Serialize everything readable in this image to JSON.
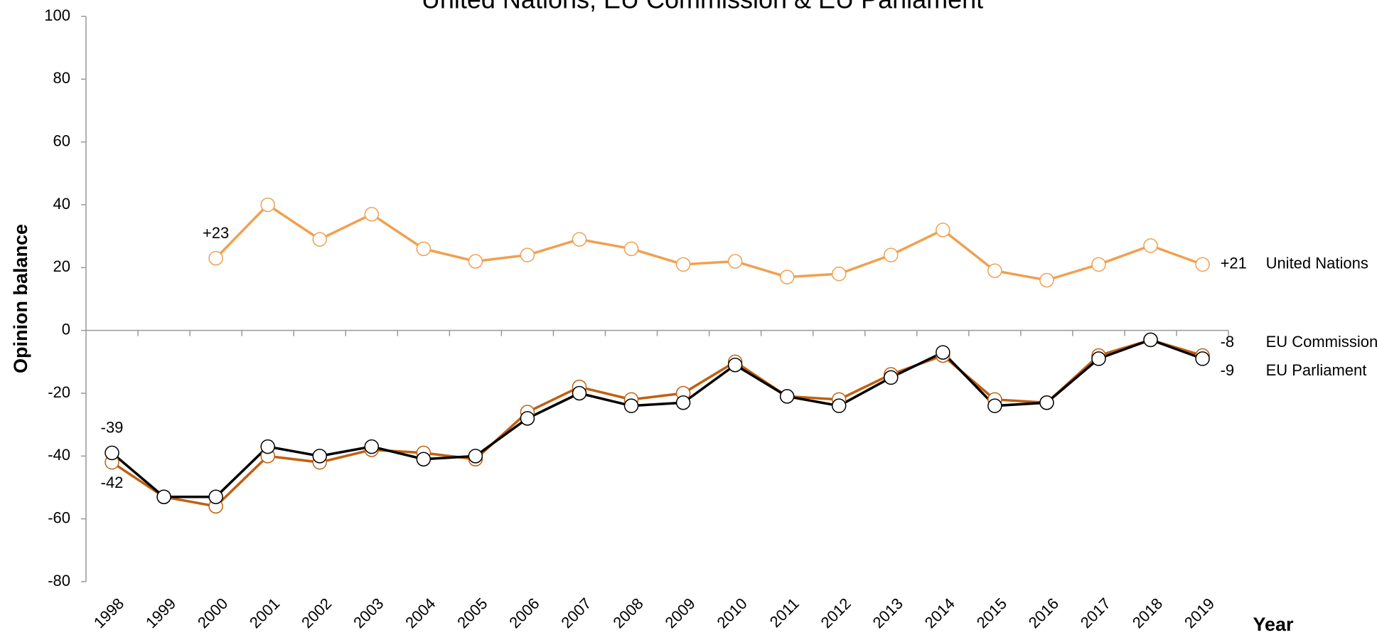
{
  "chart_data": {
    "type": "line",
    "title": "United Nations, EU Commission & EU Parliament",
    "ylabel": "Opinion balance",
    "xlabel": "Year",
    "categories": [
      "1998",
      "1999",
      "2000",
      "2001",
      "2002",
      "2003",
      "2004",
      "2005",
      "2006",
      "2007",
      "2008",
      "2009",
      "2010",
      "2011",
      "2012",
      "2013",
      "2014",
      "2015",
      "2016",
      "2017",
      "2018",
      "2019"
    ],
    "series": [
      {
        "name": "United Nations",
        "color": "#f0a050",
        "values": [
          null,
          null,
          23,
          40,
          29,
          37,
          26,
          22,
          24,
          29,
          26,
          21,
          22,
          17,
          18,
          24,
          32,
          19,
          16,
          21,
          27,
          21
        ],
        "value_labels": [
          null,
          null,
          "+23",
          null,
          null,
          null,
          null,
          null,
          null,
          null,
          null,
          null,
          null,
          null,
          null,
          null,
          null,
          null,
          null,
          null,
          null,
          "+21"
        ]
      },
      {
        "name": "EU Commission",
        "color": "#c0600f",
        "values": [
          -42,
          -53,
          -56,
          -40,
          -42,
          -38,
          -39,
          -41,
          -26,
          -18,
          -22,
          -20,
          -10,
          -21,
          -22,
          -14,
          -8,
          -22,
          -23,
          -8,
          -3,
          -8
        ],
        "value_labels": [
          "-42",
          null,
          null,
          null,
          null,
          null,
          null,
          null,
          null,
          null,
          null,
          null,
          null,
          null,
          null,
          null,
          null,
          null,
          null,
          null,
          null,
          "-8"
        ]
      },
      {
        "name": "EU Parliament",
        "color": "#000000",
        "values": [
          -39,
          -53,
          -53,
          -37,
          -40,
          -37,
          -41,
          -40,
          -28,
          -20,
          -24,
          -23,
          -11,
          -21,
          -24,
          -15,
          -7,
          -24,
          -23,
          -9,
          -3,
          -9
        ],
        "value_labels": [
          "-39",
          null,
          null,
          null,
          null,
          null,
          null,
          null,
          null,
          null,
          null,
          null,
          null,
          null,
          null,
          null,
          null,
          null,
          null,
          null,
          null,
          "-9"
        ]
      }
    ],
    "ylim": [
      -80,
      100
    ],
    "yticks": [
      -80,
      -60,
      -40,
      -20,
      0,
      20,
      40,
      60,
      80,
      100
    ]
  }
}
